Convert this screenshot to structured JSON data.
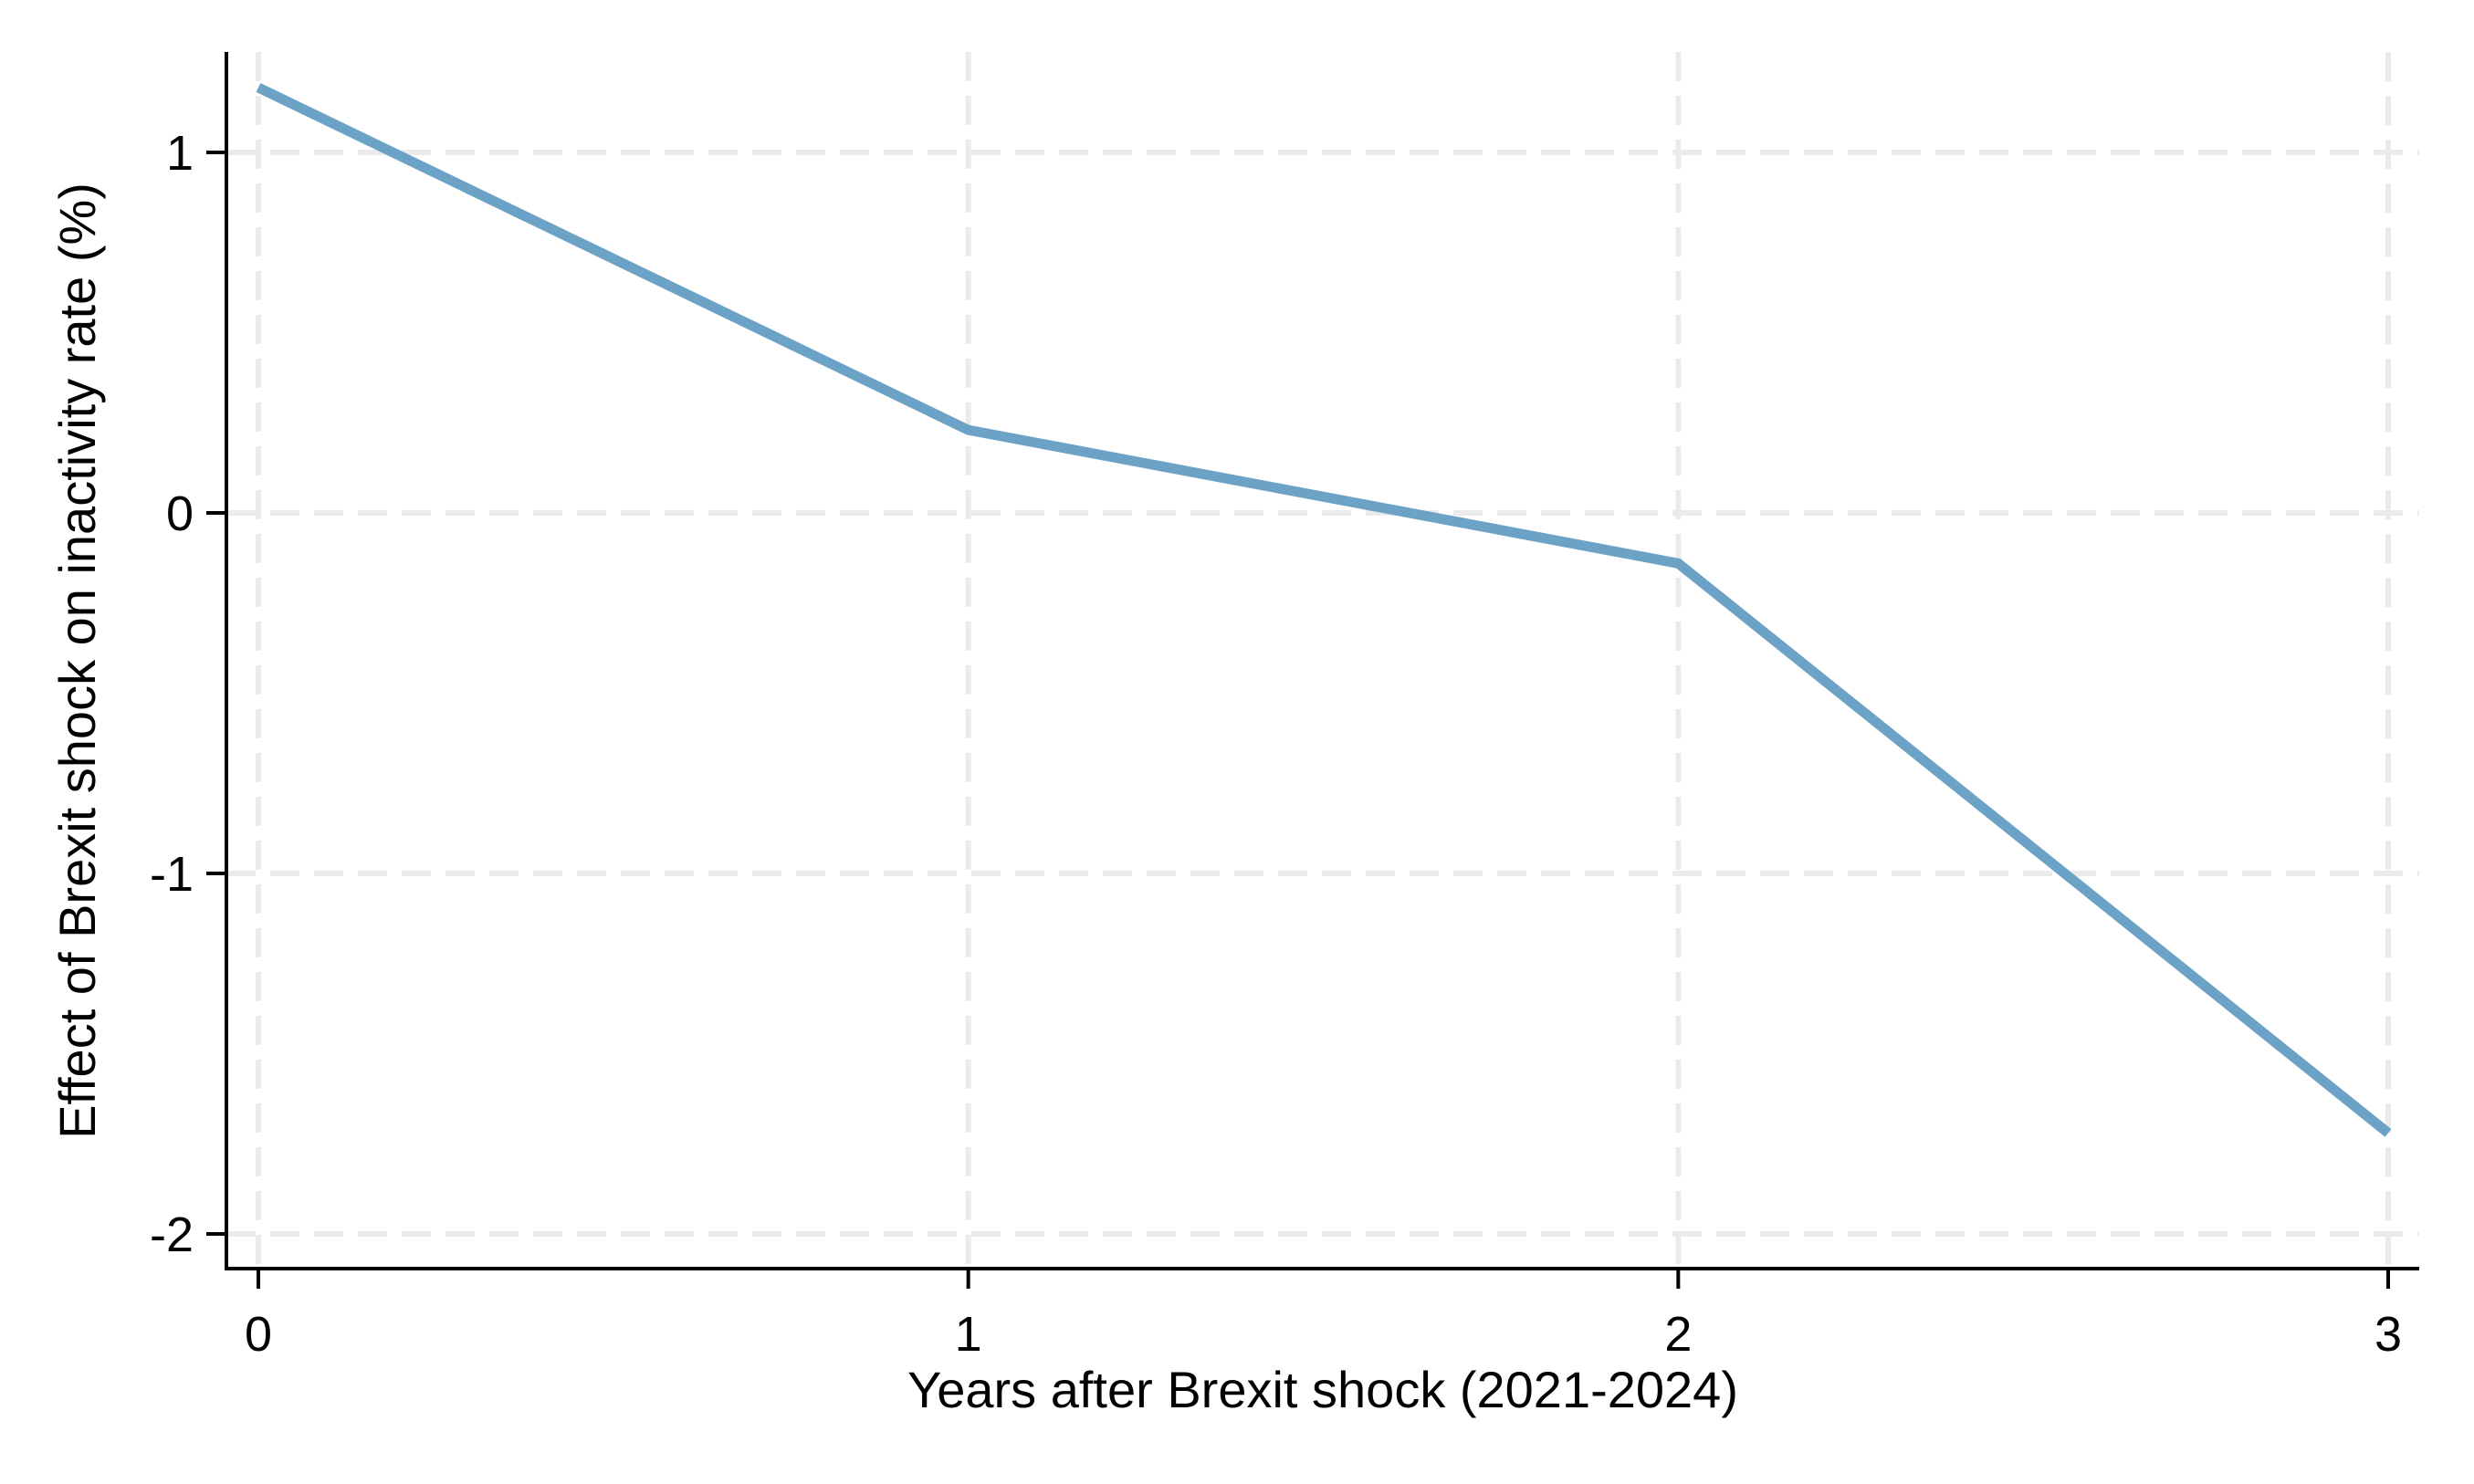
{
  "chart_data": {
    "type": "line",
    "title": "",
    "xlabel": "Years after Brexit shock (2021-2024)",
    "ylabel": "Effect of Brexit shock on inactivity rate (%)",
    "x": [
      0,
      1,
      2,
      3
    ],
    "series": [
      {
        "name": "Effect of Brexit shock on inactivity rate",
        "values": [
          1.18,
          0.23,
          -0.14,
          -1.72
        ]
      }
    ],
    "x_ticks": [
      {
        "value": 0,
        "label": "0"
      },
      {
        "value": 1,
        "label": "1"
      },
      {
        "value": 2,
        "label": "2"
      },
      {
        "value": 3,
        "label": "3"
      }
    ],
    "y_ticks": [
      {
        "value": 1,
        "label": "1"
      },
      {
        "value": 0,
        "label": "0"
      },
      {
        "value": -1,
        "label": "-1"
      },
      {
        "value": -2,
        "label": "-2"
      }
    ],
    "xlim": [
      -0.045,
      3.045
    ],
    "ylim": [
      -2.1,
      1.28
    ],
    "grid": {
      "style": "dashed",
      "x": true,
      "y": true
    },
    "legend": "none",
    "colors": {
      "line": "#6CA2C6",
      "grid": "#EBEBEB",
      "axis": "#000000",
      "text": "#000000",
      "background": "#FFFFFF"
    }
  }
}
